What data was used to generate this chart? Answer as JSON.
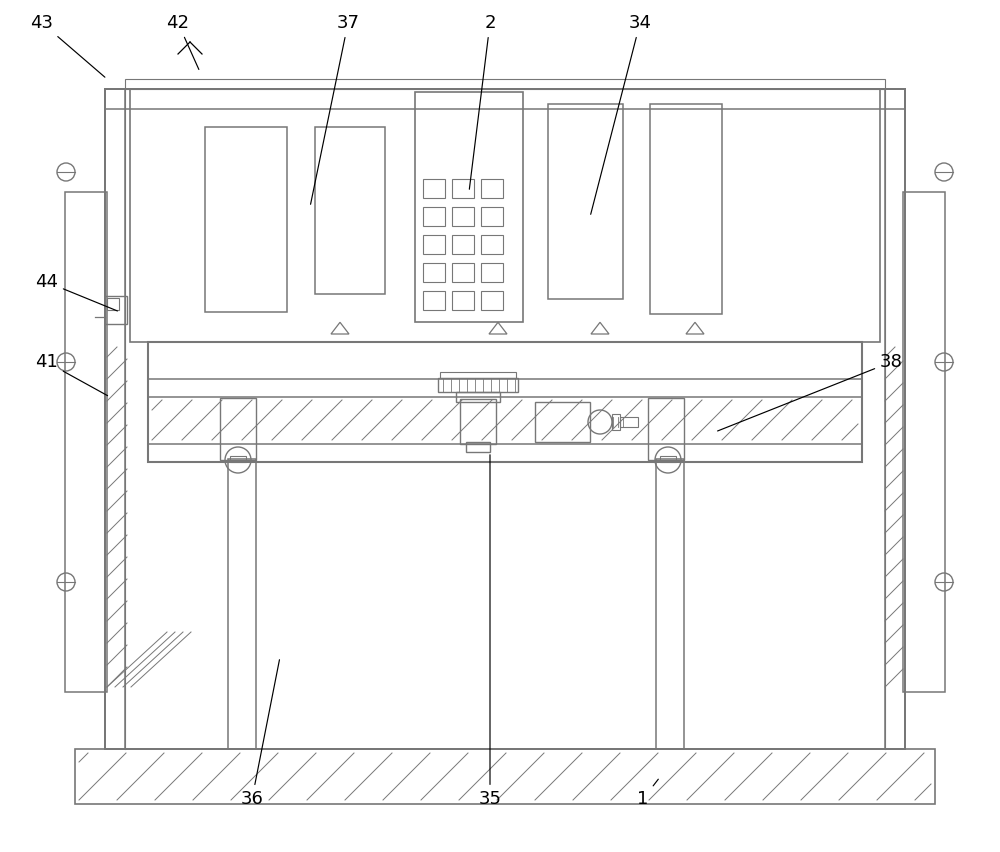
{
  "bg_color": "#ffffff",
  "lc": "#777777",
  "lw": 1.0,
  "fig_w": 10.0,
  "fig_h": 8.52
}
